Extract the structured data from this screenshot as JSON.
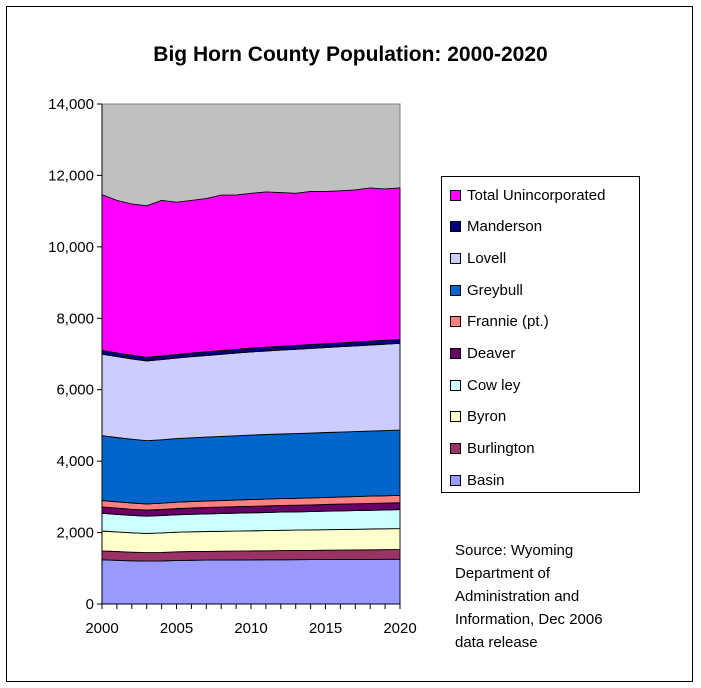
{
  "chart_data": {
    "type": "area",
    "stacked": true,
    "title": "Big Horn County Population:  2000-2020",
    "xlabel": "",
    "ylabel": "",
    "x": [
      2000,
      2001,
      2002,
      2003,
      2004,
      2005,
      2006,
      2007,
      2008,
      2009,
      2010,
      2011,
      2012,
      2013,
      2014,
      2015,
      2016,
      2017,
      2018,
      2019,
      2020
    ],
    "xticks": [
      "2000",
      "2005",
      "2010",
      "2015",
      "2020"
    ],
    "xlim": [
      2000,
      2020
    ],
    "ylim": [
      0,
      14000
    ],
    "yticks": [
      "0",
      "2,000",
      "4,000",
      "6,000",
      "8,000",
      "10,000",
      "12,000",
      "14,000"
    ],
    "grid": false,
    "plot_background": "#c0c0c0",
    "legend_placement": "right",
    "series": [
      {
        "name": "Basin",
        "color": "#9999ff",
        "values": [
          1238,
          1225,
          1210,
          1200,
          1205,
          1220,
          1225,
          1228,
          1230,
          1232,
          1235,
          1237,
          1239,
          1240,
          1242,
          1244,
          1246,
          1248,
          1250,
          1252,
          1255
        ]
      },
      {
        "name": "Burlington",
        "color": "#993366",
        "values": [
          250,
          245,
          240,
          238,
          240,
          242,
          244,
          246,
          248,
          250,
          252,
          254,
          256,
          258,
          260,
          262,
          264,
          266,
          268,
          270,
          272
        ]
      },
      {
        "name": "Byron",
        "color": "#ffffcc",
        "values": [
          557,
          550,
          545,
          540,
          545,
          548,
          552,
          555,
          558,
          560,
          563,
          565,
          568,
          570,
          572,
          575,
          577,
          579,
          581,
          583,
          585
        ]
      },
      {
        "name": "Cowley",
        "color": "#ccffff",
        "values": [
          496,
          490,
          485,
          480,
          485,
          488,
          492,
          495,
          498,
          500,
          503,
          506,
          509,
          511,
          514,
          517,
          519,
          522,
          525,
          527,
          530
        ]
      },
      {
        "name": "Deaver",
        "color": "#660066",
        "values": [
          177,
          175,
          173,
          170,
          172,
          174,
          176,
          178,
          180,
          182,
          184,
          185,
          186,
          187,
          188,
          189,
          190,
          191,
          192,
          193,
          195
        ]
      },
      {
        "name": "Frannie  (pt.)",
        "color": "#ff8080",
        "values": [
          180,
          178,
          176,
          174,
          176,
          178,
          180,
          182,
          184,
          186,
          188,
          190,
          192,
          194,
          196,
          198,
          200,
          202,
          204,
          206,
          208
        ]
      },
      {
        "name": "Greybull",
        "color": "#0066cc",
        "values": [
          1815,
          1800,
          1785,
          1770,
          1775,
          1780,
          1785,
          1790,
          1795,
          1800,
          1805,
          1808,
          1810,
          1812,
          1814,
          1816,
          1818,
          1820,
          1822,
          1824,
          1825
        ]
      },
      {
        "name": "Lovell",
        "color": "#ccccff",
        "values": [
          2281,
          2265,
          2250,
          2235,
          2245,
          2255,
          2270,
          2285,
          2300,
          2315,
          2330,
          2340,
          2350,
          2360,
          2370,
          2380,
          2390,
          2400,
          2410,
          2420,
          2430
        ]
      },
      {
        "name": "Manderson",
        "color": "#000080",
        "values": [
          104,
          103,
          102,
          101,
          101,
          102,
          102,
          103,
          103,
          104,
          104,
          105,
          105,
          106,
          106,
          107,
          107,
          108,
          108,
          109,
          110
        ]
      },
      {
        "name": "Total Unincorporated",
        "color": "#ff00ff",
        "values": [
          4362,
          4269,
          4234,
          4242,
          4356,
          4263,
          4274,
          4288,
          4354,
          4321,
          4336,
          4350,
          4305,
          4262,
          4288,
          4262,
          4259,
          4259,
          4292,
          4236,
          4240
        ]
      }
    ]
  },
  "legend": [
    {
      "name": "Total Unincorporated",
      "color": "#ff00ff"
    },
    {
      "name": "Manderson",
      "color": "#000080"
    },
    {
      "name": "Lovell",
      "color": "#ccccff"
    },
    {
      "name": "Greybull",
      "color": "#0066cc"
    },
    {
      "name": "Frannie  (pt.)",
      "color": "#ff8080"
    },
    {
      "name": "Deaver",
      "color": "#660066"
    },
    {
      "name": "Cow ley",
      "color": "#ccffff"
    },
    {
      "name": "Byron",
      "color": "#ffffcc"
    },
    {
      "name": "Burlington",
      "color": "#993366"
    },
    {
      "name": "Basin",
      "color": "#9999ff"
    }
  ],
  "source": {
    "lines": [
      "Source:  Wyoming",
      "Department of",
      "Administration and",
      "Information, Dec 2006",
      "data release"
    ]
  }
}
